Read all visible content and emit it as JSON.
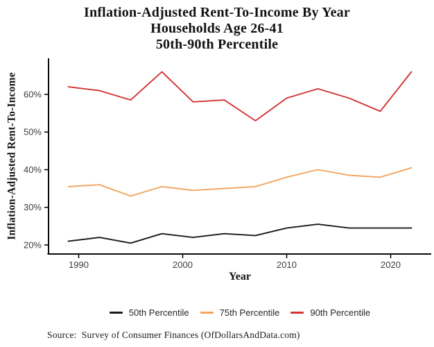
{
  "figure": {
    "source": "Source:  Survey of Consumer Finances (OfDollarsAndData.com)"
  },
  "chart_data": {
    "type": "line",
    "title": "Inflation-Adjusted Rent-To-Income By Year",
    "subtitle1": "Households Age 26-41",
    "subtitle2": "50th-90th Percentile",
    "xlabel": "Year",
    "ylabel": "Inflation-Adjusted Rent-To-Income",
    "x": [
      1989,
      1992,
      1995,
      1998,
      2001,
      2004,
      2007,
      2010,
      2013,
      2016,
      2019,
      2022
    ],
    "series": [
      {
        "name": "50th Percentile",
        "color": "#1a1a1a",
        "values": [
          21,
          22,
          20.5,
          23,
          22,
          23,
          22.5,
          24.5,
          25.5,
          24.5,
          24.5,
          24.5
        ]
      },
      {
        "name": "75th Percentile",
        "color": "#f2a45f",
        "values": [
          35.5,
          36,
          33,
          35.5,
          34.5,
          35,
          35.5,
          38,
          40,
          38.5,
          38,
          40.5
        ]
      },
      {
        "name": "90th Percentile",
        "color": "#d23333",
        "values": [
          62,
          61,
          58.5,
          66,
          58,
          58.5,
          53,
          59,
          61.5,
          59,
          55.5,
          66
        ]
      }
    ],
    "xticks": {
      "values": [
        1990,
        2000,
        2010,
        2020
      ],
      "labels": [
        "1990",
        "2000",
        "2010",
        "2020"
      ]
    },
    "yticks": {
      "values": [
        20,
        30,
        40,
        50,
        60
      ],
      "labels": [
        "20%",
        "30%",
        "40%",
        "50%",
        "60%"
      ]
    },
    "xlim": [
      1987.1,
      2023.9
    ],
    "ylim": [
      17.6,
      69.4
    ],
    "grid": false,
    "legend_position": "bottom",
    "axis_color": "#0a0a0a",
    "tick_label_color": "#3d3d3d"
  }
}
